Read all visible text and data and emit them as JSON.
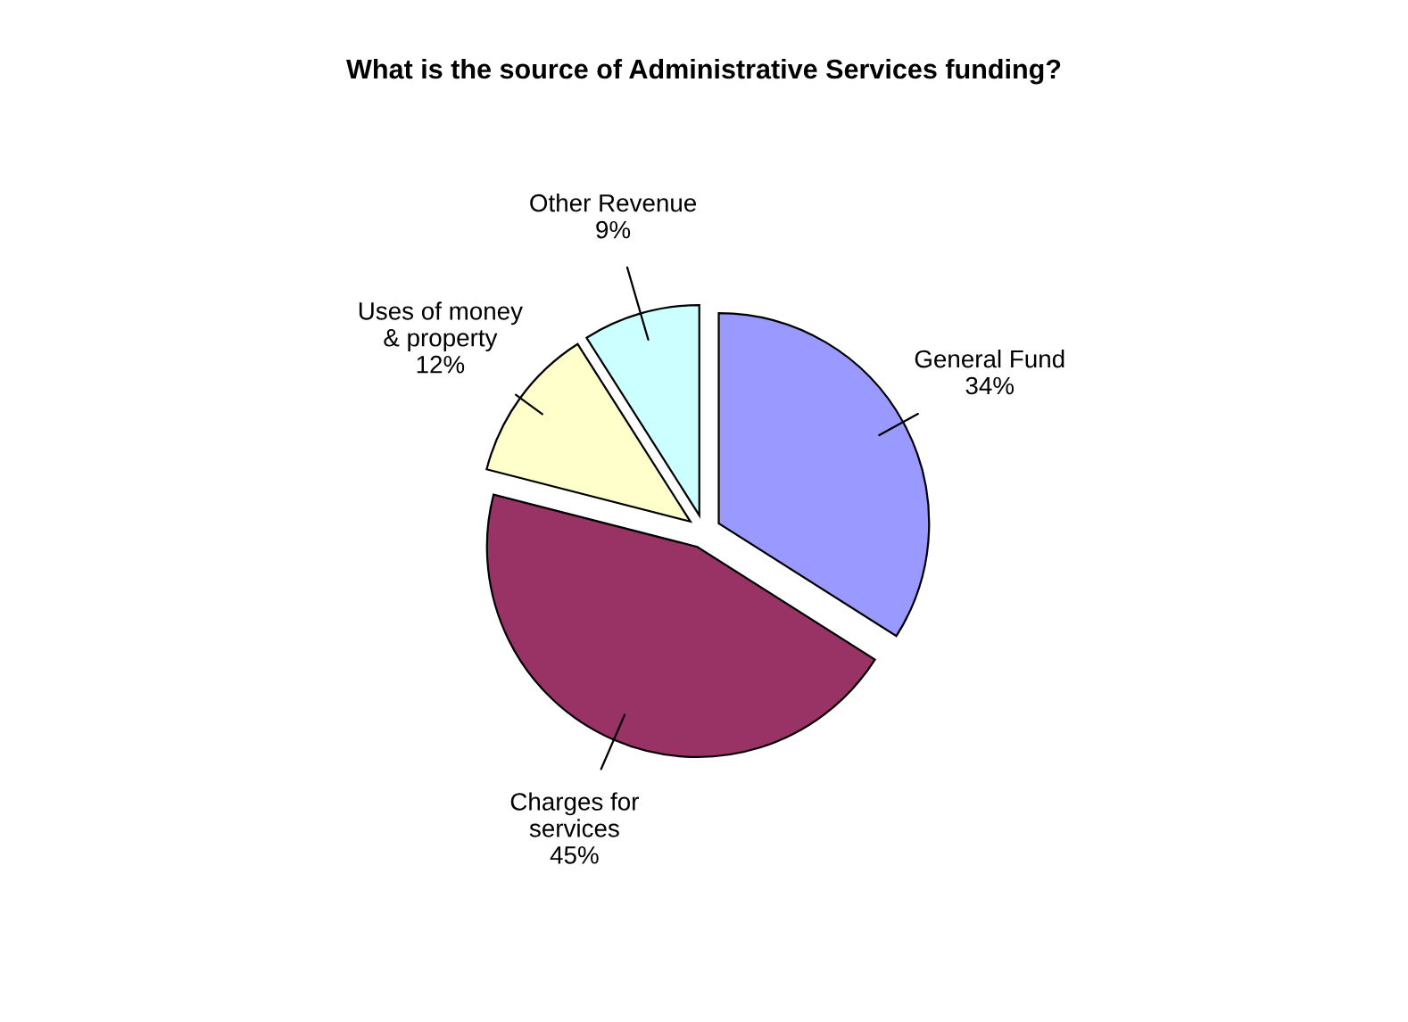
{
  "chart_data": {
    "type": "pie",
    "title": "What is the source of Administrative Services funding?",
    "categories": [
      "General Fund",
      "Charges for\nservices",
      "Uses of money\n& property",
      "Other Revenue"
    ],
    "values": [
      34,
      45,
      12,
      9
    ],
    "value_labels": [
      "34%",
      "45%",
      "12%",
      "9%"
    ],
    "colors": [
      "#9999ff",
      "#993366",
      "#ffffcc",
      "#ccffff"
    ]
  }
}
